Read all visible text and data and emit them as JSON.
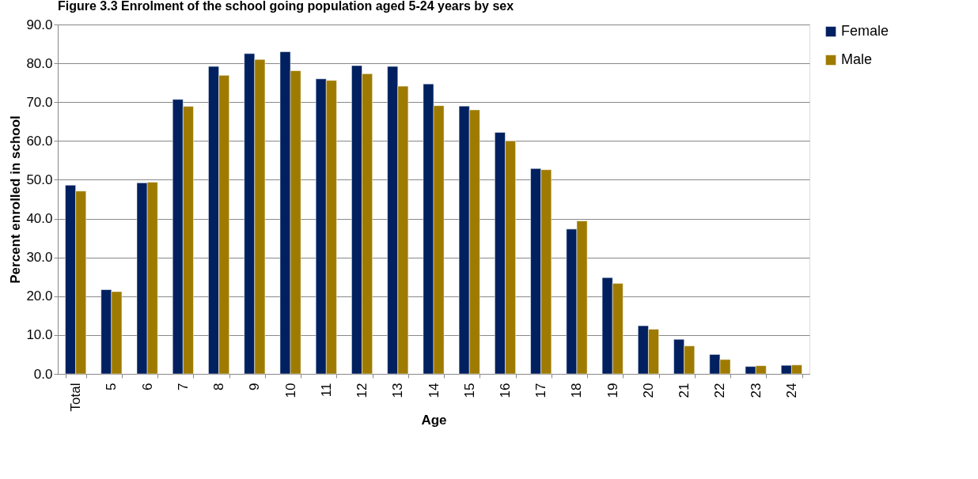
{
  "chart_data": {
    "type": "bar",
    "title": "Figure 3.3  Enrolment of the school going population aged 5-24 years by sex",
    "xlabel": "Age",
    "ylabel": "Percent enrolled in school",
    "categories": [
      "Total",
      "5",
      "6",
      "7",
      "8",
      "9",
      "10",
      "11",
      "12",
      "13",
      "14",
      "15",
      "16",
      "17",
      "18",
      "19",
      "20",
      "21",
      "22",
      "23",
      "24"
    ],
    "series": [
      {
        "name": "Female",
        "color": "#002060",
        "values": [
          48.6,
          21.7,
          49.2,
          70.7,
          79.2,
          82.5,
          83.0,
          76.0,
          79.4,
          79.2,
          74.7,
          69.0,
          62.2,
          52.9,
          37.3,
          24.8,
          12.4,
          8.9,
          5.0,
          1.9,
          2.2
        ]
      },
      {
        "name": "Male",
        "color": "#9e7b00",
        "values": [
          47.1,
          21.2,
          49.4,
          68.9,
          76.9,
          81.0,
          78.1,
          75.6,
          77.3,
          74.1,
          69.1,
          68.0,
          60.0,
          52.6,
          39.4,
          23.3,
          11.5,
          7.2,
          3.7,
          2.1,
          2.3
        ]
      }
    ],
    "ylim": [
      0,
      90
    ],
    "yticks": [
      {
        "value": 0,
        "label": "0.0"
      },
      {
        "value": 10,
        "label": "10.0"
      },
      {
        "value": 20,
        "label": "20.0"
      },
      {
        "value": 30,
        "label": "30.0"
      },
      {
        "value": 40,
        "label": "40.0"
      },
      {
        "value": 50,
        "label": "50.0"
      },
      {
        "value": 60,
        "label": "60.0"
      },
      {
        "value": 70,
        "label": "70.0"
      },
      {
        "value": 80,
        "label": "80.0"
      },
      {
        "value": 90,
        "label": "90.0"
      }
    ],
    "grid": "y",
    "legend": "right"
  }
}
